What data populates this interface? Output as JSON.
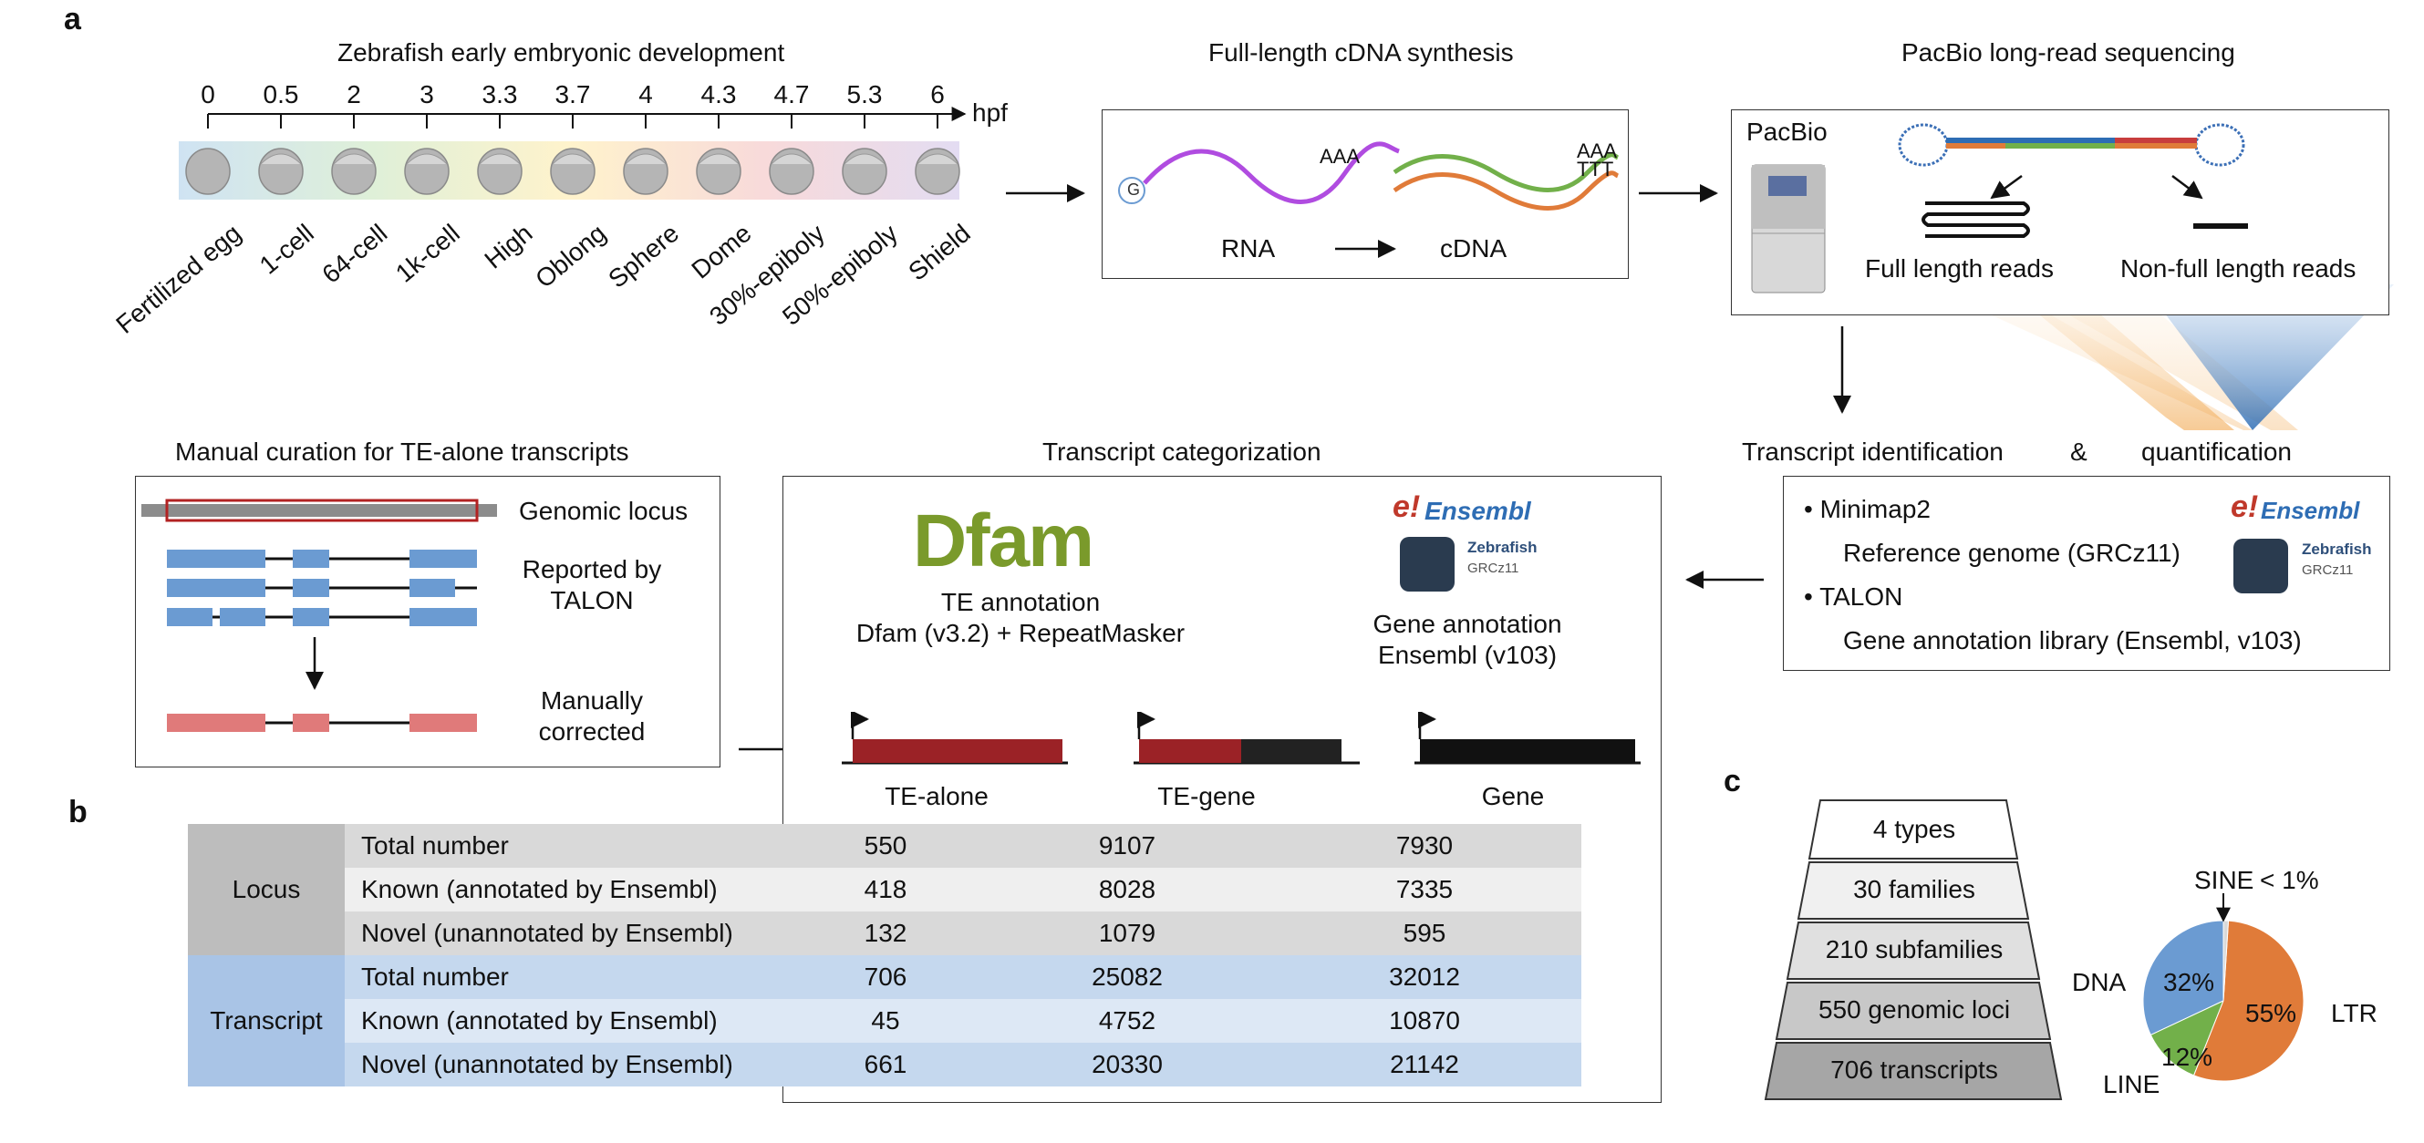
{
  "panels": {
    "a": "a",
    "b": "b",
    "c": "c"
  },
  "titles": {
    "zebrafish": "Zebrafish early embryonic development",
    "cdna": "Full-length cDNA synthesis",
    "pacbio": "PacBio long-read sequencing",
    "manual": "Manual curation for TE-alone transcripts",
    "categorization": "Transcript categorization",
    "ident": "Transcript identification",
    "amp": "&",
    "quant": "quantification"
  },
  "timeline": {
    "unit": "hpf",
    "ticks": [
      "0",
      "0.5",
      "2",
      "3",
      "3.3",
      "3.7",
      "4",
      "4.3",
      "4.7",
      "5.3",
      "6"
    ],
    "stages": [
      "Fertilized egg",
      "1-cell",
      "64-cell",
      "1k-cell",
      "High",
      "Oblong",
      "Sphere",
      "Dome",
      "30%-epiboly",
      "50%-epiboly",
      "Shield"
    ]
  },
  "cdna": {
    "g": "G",
    "aaa1": "AAA",
    "aaa2": "AAA",
    "ttt": "TTT",
    "rna": "RNA",
    "cdna": "cDNA"
  },
  "pacbio": {
    "brand": "PacBio",
    "full": "Full length reads",
    "nonfull": "Non-full length reads"
  },
  "tools": {
    "minimap": "Minimap2",
    "ref": "Reference genome (GRCz11)",
    "talon": "TALON",
    "lib": "Gene annotation library (Ensembl, v103)",
    "ensembl": "Ensembl",
    "zebrafish": "Zebrafish",
    "grcz": "GRCz11"
  },
  "manual": {
    "locus": "Genomic locus",
    "reported1": "Reported by",
    "reported2": "TALON",
    "corrected1": "Manually",
    "corrected2": "corrected"
  },
  "categ": {
    "dfam": "Dfam",
    "te_ann1": "TE annotation",
    "te_ann2": "Dfam (v3.2) + RepeatMasker",
    "gene_ann1": "Gene annotation",
    "gene_ann2": "Ensembl (v103)",
    "cols": [
      "TE-alone",
      "TE-gene",
      "Gene"
    ]
  },
  "table": {
    "groups": [
      {
        "name": "Locus",
        "rows": [
          {
            "label": "Total number",
            "values": [
              "550",
              "9107",
              "7930"
            ]
          },
          {
            "label": "Known (annotated by Ensembl)",
            "values": [
              "418",
              "8028",
              "7335"
            ]
          },
          {
            "label": "Novel (unannotated by Ensembl)",
            "values": [
              "132",
              "1079",
              "595"
            ]
          }
        ]
      },
      {
        "name": "Transcript",
        "rows": [
          {
            "label": "Total number",
            "values": [
              "706",
              "25082",
              "32012"
            ]
          },
          {
            "label": "Known (annotated by Ensembl)",
            "values": [
              "45",
              "4752",
              "10870"
            ]
          },
          {
            "label": "Novel (unannotated by Ensembl)",
            "values": [
              "661",
              "20330",
              "21142"
            ]
          }
        ]
      }
    ]
  },
  "pyramid": [
    "4 types",
    "30 families",
    "210 subfamilies",
    "550 genomic loci",
    "706 transcripts"
  ],
  "chart_data": {
    "type": "pie",
    "title": "",
    "slices": [
      {
        "label": "LTR",
        "value": 55,
        "text": "55%",
        "color": "#e07b39"
      },
      {
        "label": "LINE",
        "value": 12,
        "text": "12%",
        "color": "#72b04a"
      },
      {
        "label": "DNA",
        "value": 32,
        "text": "32%",
        "color": "#6b9bd2"
      },
      {
        "label": "SINE",
        "value": 1,
        "text": "< 1%",
        "color": "#d9d9d9"
      }
    ]
  },
  "colors": {
    "te_red": "#9b2226",
    "gene_black": "#111111",
    "curate_blue": "#6b9bd2",
    "curate_red": "#e07a7a",
    "dfam_green": "#7a9a2b",
    "ensembl_blue": "#2e6db4"
  }
}
